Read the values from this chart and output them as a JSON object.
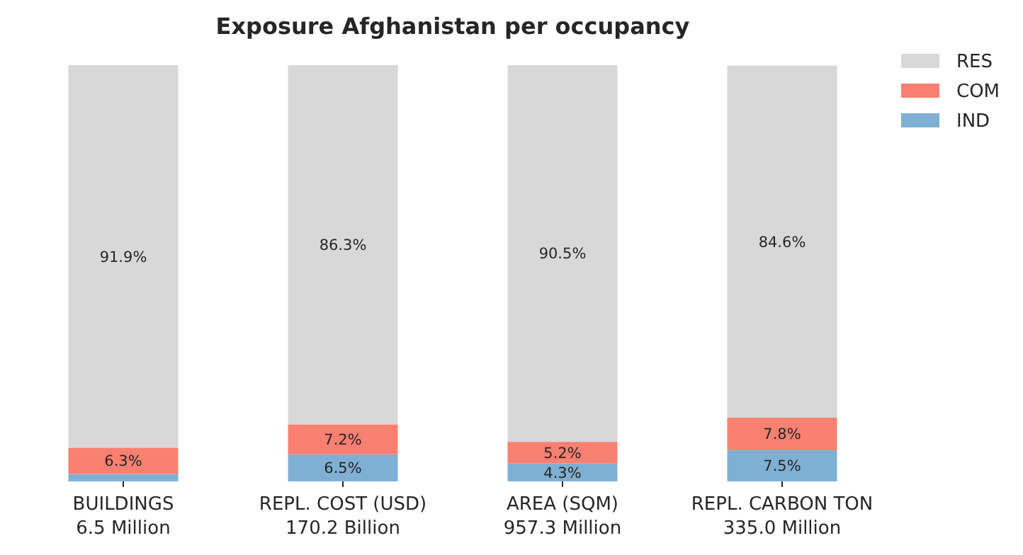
{
  "chart_data": {
    "type": "bar",
    "title": "Exposure Afghanistan per occupancy",
    "stacked": true,
    "categories": [
      "BUILDINGS\n6.5 Million",
      "REPL. COST (USD)\n170.2 Billion",
      "AREA (SQM)\n957.3 Million",
      "REPL. CARBON TON\n335.0 Million"
    ],
    "series": [
      {
        "name": "IND",
        "color": "#7fb0d3",
        "values": [
          1.8,
          6.5,
          4.3,
          7.5
        ],
        "value_labels": [
          null,
          "6.5%",
          "4.3%",
          "7.5%"
        ]
      },
      {
        "name": "COM",
        "color": "#fa8072",
        "values": [
          6.3,
          7.2,
          5.2,
          7.8
        ],
        "value_labels": [
          "6.3%",
          "7.2%",
          "5.2%",
          "7.8%"
        ]
      },
      {
        "name": "RES",
        "color": "#d8d8d8",
        "values": [
          91.9,
          86.3,
          90.5,
          84.6
        ],
        "value_labels": [
          "91.9%",
          "86.3%",
          "90.5%",
          "84.6%"
        ]
      }
    ],
    "ylim": [
      0,
      100
    ],
    "tick_labels": "x",
    "legend": "top right"
  }
}
